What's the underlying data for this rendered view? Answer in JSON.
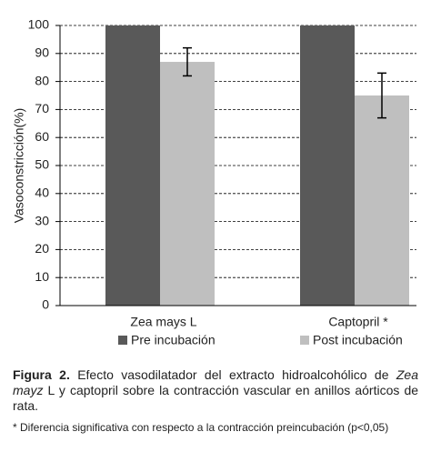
{
  "chart_data": {
    "type": "bar",
    "ylabel": "Vasoconstricción(%)",
    "categories": [
      "Zea mays L",
      "Captopril *"
    ],
    "series": [
      {
        "name": "Pre incubación",
        "color": "#595959",
        "values": [
          100,
          100
        ]
      },
      {
        "name": "Post incubación",
        "color": "#bfbfbf",
        "values": [
          87,
          75
        ],
        "errors": [
          5,
          8
        ]
      }
    ],
    "ylim": [
      0,
      100
    ],
    "yticks": [
      0,
      10,
      20,
      30,
      40,
      50,
      60,
      70,
      80,
      90,
      100
    ],
    "grid": true
  },
  "caption": {
    "label": "Figura 2.",
    "text1": "Efecto vasodilatador del extracto hidroalcohólico de",
    "italic": "Zea mayz",
    "text2": "L y captopril sobre la contracción vascular en anillos aórticos de rata.",
    "note": "* Diferencia significativa con respecto a la contracción preincubación (p<0,05)"
  }
}
